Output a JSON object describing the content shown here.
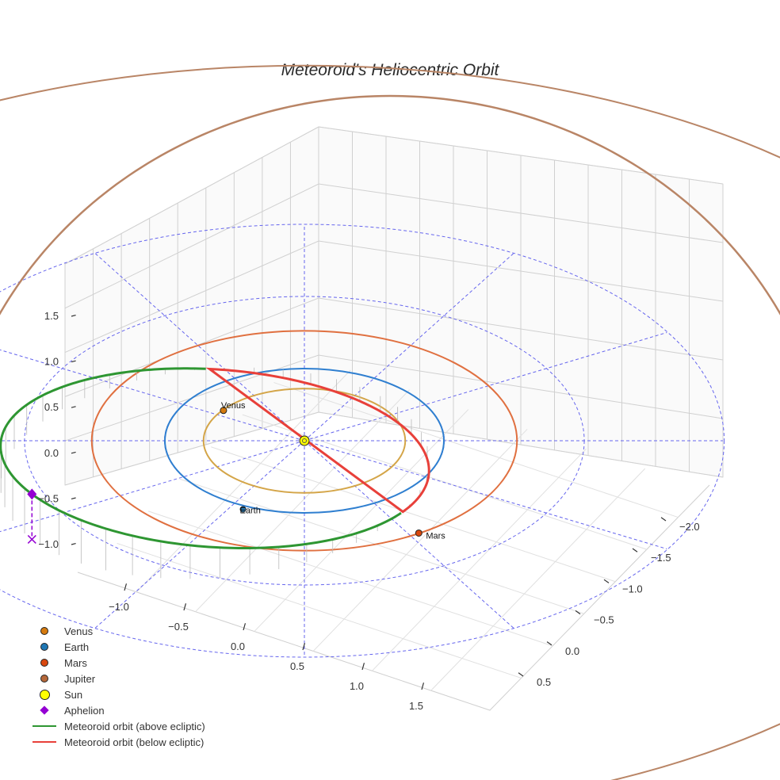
{
  "chart_data": {
    "type": "scatter3d",
    "title": "Meteoroid's Heliocentric Orbit",
    "axes": {
      "x": {
        "ticks": [
          -1.0,
          -0.5,
          0.0,
          0.5,
          1.0,
          1.5
        ],
        "labels": [
          "−1.0",
          "−0.5",
          "0.0",
          "0.5",
          "1.0",
          "1.5"
        ]
      },
      "y": {
        "ticks": [
          -2.0,
          -1.5,
          -1.0,
          -0.5,
          0.0,
          0.5
        ],
        "labels": [
          "−2.0",
          "−1.5",
          "−1.0",
          "−0.5",
          "0.0",
          "0.5"
        ]
      },
      "z": {
        "ticks": [
          -1.0,
          -0.5,
          0.0,
          0.5,
          1.0,
          1.5
        ],
        "labels": [
          "−1.0",
          "−0.5",
          "0.0",
          "0.5",
          "1.0",
          "1.5"
        ]
      }
    },
    "planet_orbits_au": {
      "Venus": 0.723,
      "Earth": 1.0,
      "Mars": 1.524,
      "Jupiter": 5.2
    },
    "reference_rings_au": [
      1.0,
      2.0,
      3.0
    ],
    "meteoroid_orbit": {
      "a_au": 1.6,
      "e": 0.49,
      "perihelion_au": 0.82,
      "aphelion_au": 2.38,
      "node_line_angle_deg": 35,
      "inclination_deg": 25
    },
    "series": [
      {
        "name": "Venus",
        "label": "Venus",
        "marker": "circle",
        "color": "#d57a0e"
      },
      {
        "name": "Earth",
        "label": "Earth",
        "marker": "circle",
        "color": "#1f77b4"
      },
      {
        "name": "Mars",
        "label": "Mars",
        "marker": "circle",
        "color": "#d9480f"
      },
      {
        "name": "Jupiter",
        "label": "",
        "marker": "circle",
        "color": "#b5683a"
      },
      {
        "name": "Sun",
        "label": "",
        "marker": "circle",
        "color": "#ffff00"
      },
      {
        "name": "Aphelion",
        "label": "",
        "marker": "diamond",
        "color": "#9400d3"
      },
      {
        "name": "Meteoroid orbit (above ecliptic)",
        "label": "",
        "marker": "line",
        "color": "#2e9632"
      },
      {
        "name": "Meteoroid orbit (below ecliptic)",
        "label": "",
        "marker": "line",
        "color": "#e8403a"
      }
    ],
    "legend_position": "bottom-left",
    "grid": true
  }
}
